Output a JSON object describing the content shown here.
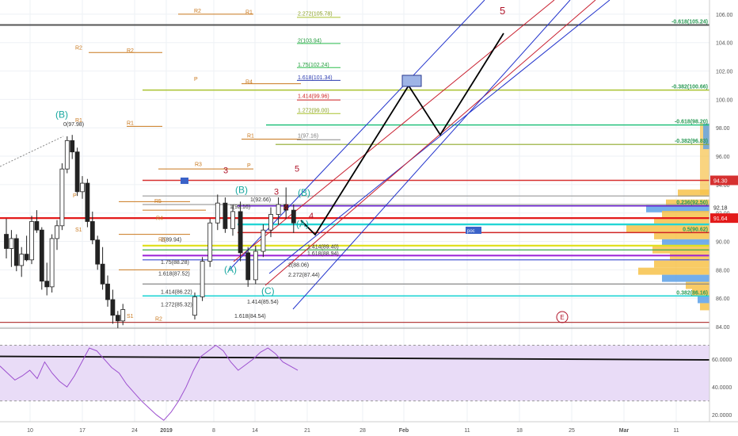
{
  "colors": {
    "grid": "#eef1f5",
    "up": "#ffffff",
    "down": "#222222",
    "wick": "#222222",
    "red_line": "#e31a1a",
    "rsi_line": "#9c4fcf",
    "rsi_band": "#e9dcf7",
    "pivot": "#c9781e",
    "fib_green": "#2fbf4f",
    "fib_olive": "#a9c22f",
    "wave_red": "#b0152a",
    "wave_teal": "#18a8a0",
    "channel_blue": "#2233cc",
    "channel_red": "#c81e2e"
  },
  "price_axis": {
    "ticks": [
      "106.00",
      "104.00",
      "102.00",
      "100.00",
      "98.00",
      "96.00",
      "94.00",
      "92.00",
      "90.00",
      "88.00",
      "86.00",
      "84.00"
    ],
    "tick_values": [
      106,
      104,
      102,
      100,
      98,
      96,
      94,
      92,
      90,
      88,
      86,
      84
    ],
    "current_price": "91.64",
    "tag_94": "94.30",
    "tag_92": "92.18"
  },
  "rsi_axis": {
    "ticks": [
      "60.0000",
      "40.0000",
      "20.0000"
    ],
    "tick_values": [
      60,
      40,
      20
    ]
  },
  "time_axis": {
    "labels": [
      "10",
      "17",
      "24",
      "2019",
      "8",
      "14",
      "21",
      "28",
      "Feb",
      "11",
      "18",
      "25",
      "Mar",
      "11"
    ]
  },
  "chart_data": {
    "type": "candlestick",
    "price_range": [
      84,
      107
    ],
    "rsi_range": [
      15,
      80
    ],
    "candles": [
      [
        90.5,
        91.6,
        88.8,
        89.5
      ],
      [
        89.5,
        90.8,
        88.2,
        90.2
      ],
      [
        90.2,
        90.5,
        87.9,
        88.3
      ],
      [
        88.3,
        89.6,
        87.5,
        89.1
      ],
      [
        89.1,
        90.4,
        88.6,
        88.7
      ],
      [
        88.7,
        91.8,
        88.4,
        91.4
      ],
      [
        91.4,
        92.2,
        90.6,
        90.8
      ],
      [
        90.8,
        91.0,
        86.6,
        87.2
      ],
      [
        87.2,
        88.5,
        86.2,
        86.8
      ],
      [
        86.8,
        90.5,
        86.4,
        90.2
      ],
      [
        90.2,
        91.5,
        89.4,
        91.1
      ],
      [
        91.1,
        95.5,
        90.8,
        95.1
      ],
      [
        95.1,
        97.4,
        94.8,
        97.1
      ],
      [
        97.1,
        97.5,
        95.8,
        96.3
      ],
      [
        96.3,
        96.6,
        93.2,
        93.5
      ],
      [
        93.5,
        94.6,
        93.0,
        94.1
      ],
      [
        94.1,
        94.4,
        91.0,
        91.4
      ],
      [
        91.4,
        92.1,
        89.8,
        90.1
      ],
      [
        90.1,
        90.4,
        88.0,
        88.4
      ],
      [
        88.4,
        89.6,
        86.6,
        87.0
      ],
      [
        87.0,
        87.6,
        85.4,
        85.9
      ],
      [
        85.9,
        86.6,
        84.2,
        84.8
      ],
      [
        84.8,
        85.1,
        83.9,
        84.4
      ],
      [
        84.4,
        85.6,
        84.1,
        85.2
      ]
    ],
    "candles2": [
      [
        84.8,
        86.4,
        84.5,
        86.1
      ],
      [
        86.1,
        88.9,
        85.8,
        88.6
      ],
      [
        88.6,
        91.6,
        88.2,
        91.3
      ],
      [
        91.3,
        93.3,
        90.8,
        92.7
      ],
      [
        92.7,
        93.1,
        90.6,
        90.9
      ],
      [
        90.9,
        92.6,
        90.4,
        92.1
      ],
      [
        92.1,
        92.8,
        88.6,
        89.2
      ],
      [
        89.2,
        89.6,
        86.8,
        87.3
      ],
      [
        87.3,
        89.7,
        87.0,
        89.3
      ],
      [
        89.3,
        91.2,
        88.9,
        90.8
      ],
      [
        90.8,
        92.4,
        90.3,
        91.9
      ],
      [
        91.9,
        93.1,
        91.2,
        92.6
      ],
      [
        92.6,
        93.8,
        91.6,
        92.2
      ],
      [
        92.2,
        92.6,
        90.6,
        91.3
      ]
    ],
    "rsi": [
      55,
      50,
      45,
      48,
      52,
      46,
      58,
      50,
      44,
      40,
      48,
      58,
      68,
      66,
      60,
      54,
      50,
      42,
      36,
      30,
      25,
      20,
      16,
      22,
      30,
      40,
      52,
      62,
      66,
      70,
      66,
      58,
      52,
      56,
      60,
      65,
      68,
      64,
      58,
      55,
      52
    ],
    "rsi_level": 60,
    "fib_left": [
      {
        "label": "2.272(105.78)",
        "price": 105.8,
        "color": "olive"
      },
      {
        "label": "2(103.94)",
        "price": 103.9,
        "color": "green"
      },
      {
        "label": "1.75(102.24)",
        "price": 102.2,
        "color": "green"
      },
      {
        "label": "1.618(101.34)",
        "price": 101.3,
        "color": "navy"
      },
      {
        "label": "1.414(99.96)",
        "price": 100.0,
        "color": "red"
      },
      {
        "label": "1.272(99.00)",
        "price": 99.0,
        "color": "olive"
      },
      {
        "label": "1(97.16)",
        "price": 97.2,
        "color": "gray"
      }
    ],
    "fib_right": [
      {
        "label": "-0.618(105.24)",
        "price": 105.24
      },
      {
        "label": "-0.382(100.66)",
        "price": 100.66
      },
      {
        "label": "-0.618(98.20)",
        "price": 98.2
      },
      {
        "label": "-0.382(96.83)",
        "price": 96.83
      },
      {
        "label": "0.236(92.50)",
        "price": 92.5
      },
      {
        "label": "0.5(90.62)",
        "price": 90.62
      },
      {
        "label": "0.382(86.16)",
        "price": 86.16
      }
    ],
    "fib_mid": [
      {
        "label": "2(89.94)",
        "price": 89.9
      },
      {
        "label": "1.75(88.28)",
        "price": 88.3
      },
      {
        "label": "1.618(87.52)",
        "price": 87.5
      },
      {
        "label": "1.414(86.22)",
        "price": 86.2
      },
      {
        "label": "1.272(85.32)",
        "price": 85.3
      },
      {
        "label": "1.414(85.54)",
        "price": 85.5
      },
      {
        "label": "1.618(84.54)",
        "price": 84.5
      },
      {
        "label": "2.272(87.44)",
        "price": 87.4
      },
      {
        "label": "2(88.06)",
        "price": 88.1
      },
      {
        "label": "1(92.66)",
        "price": 92.7
      },
      {
        "label": "1(92.16)",
        "price": 92.2
      },
      {
        "label": "0(97.98)",
        "price": 98.0
      },
      {
        "label": "1.618(88.94)",
        "price": 88.9
      },
      {
        "label": "1.414(89.40)",
        "price": 89.4
      }
    ],
    "pivots_left": [
      "R2",
      "R1",
      "P",
      "S1",
      "R5",
      "R4",
      "R3",
      "R2",
      "R1",
      "P",
      "S1",
      "R3",
      "R4",
      "R1",
      "R2",
      "R5",
      "S1"
    ],
    "pivots_labels": [
      "R2",
      "R2",
      "R1",
      "R1",
      "P",
      "S1",
      "R5",
      "R4",
      "R3",
      "R2",
      "R1",
      "P",
      "R4",
      "R1",
      "R3",
      "P",
      "S1",
      "R2"
    ],
    "wave_labels_red": [
      "3",
      "3",
      "4",
      "5",
      "4",
      "5"
    ],
    "wave_labels_teal": [
      "(B)",
      "(B)",
      "(A)",
      "(A)",
      "(C)",
      "(B)"
    ],
    "circle_label": "E",
    "poc_label": "poc"
  }
}
